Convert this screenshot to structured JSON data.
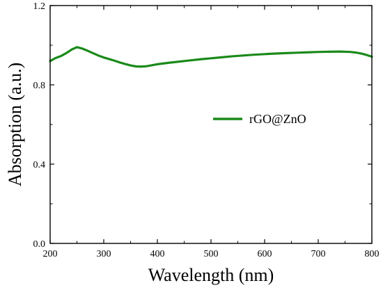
{
  "chart_data": {
    "type": "line",
    "xlabel": "Wavelength (nm)",
    "ylabel": "Absorption (a.u.)",
    "xlim": [
      200,
      800
    ],
    "ylim": [
      0.0,
      1.2
    ],
    "x_ticks": [
      "200",
      "300",
      "400",
      "500",
      "600",
      "700",
      "800"
    ],
    "y_ticks": [
      "0.0",
      "0.4",
      "0.8",
      "1.2"
    ],
    "grid": false,
    "legend_position": "center-right",
    "series": [
      {
        "name": "rGO@ZnO",
        "color": "#1a8a1a",
        "x": [
          200,
          210,
          220,
          230,
          240,
          250,
          260,
          270,
          280,
          290,
          300,
          310,
          320,
          330,
          340,
          350,
          360,
          370,
          380,
          390,
          400,
          420,
          440,
          460,
          480,
          500,
          520,
          540,
          560,
          580,
          600,
          620,
          640,
          660,
          680,
          700,
          720,
          740,
          760,
          770,
          780,
          790,
          800
        ],
        "y": [
          0.92,
          0.935,
          0.945,
          0.96,
          0.978,
          0.99,
          0.983,
          0.972,
          0.96,
          0.948,
          0.938,
          0.93,
          0.922,
          0.913,
          0.905,
          0.898,
          0.893,
          0.892,
          0.894,
          0.899,
          0.904,
          0.911,
          0.917,
          0.923,
          0.929,
          0.934,
          0.939,
          0.944,
          0.948,
          0.952,
          0.955,
          0.958,
          0.96,
          0.962,
          0.964,
          0.966,
          0.967,
          0.968,
          0.966,
          0.963,
          0.958,
          0.951,
          0.942
        ]
      }
    ]
  }
}
